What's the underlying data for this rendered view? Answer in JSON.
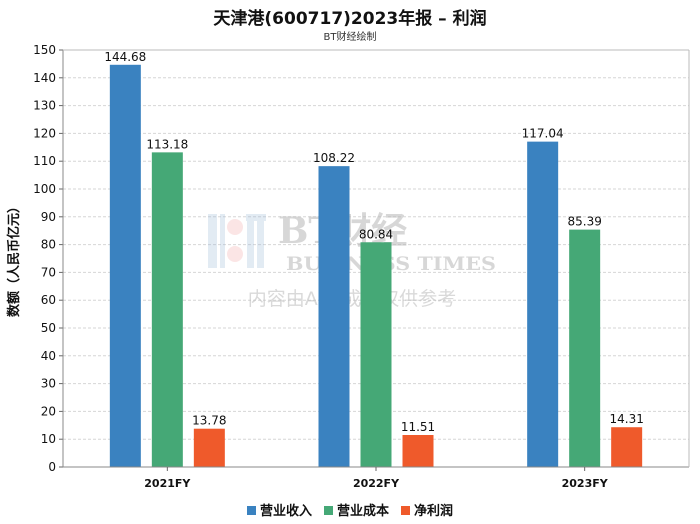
{
  "chart_data": {
    "type": "bar",
    "title": "天津港(600717)2023年报 – 利润",
    "subtitle": "BT财经绘制",
    "ylabel": "数额（人民币亿元）",
    "xlabel": "",
    "categories": [
      "2021FY",
      "2022FY",
      "2023FY"
    ],
    "ylim": [
      0,
      150
    ],
    "yticks": [
      0,
      10,
      20,
      30,
      40,
      50,
      60,
      70,
      80,
      90,
      100,
      110,
      120,
      130,
      140,
      150
    ],
    "grid": true,
    "legend_position": "bottom",
    "series": [
      {
        "name": "营业收入",
        "color": "#3a82c0",
        "values": [
          144.68,
          108.22,
          117.04
        ],
        "labels": [
          "144.68",
          "108.22",
          "117.04"
        ]
      },
      {
        "name": "营业成本",
        "color": "#45a876",
        "values": [
          113.18,
          80.84,
          85.39
        ],
        "labels": [
          "113.18",
          "80.84",
          "85.39"
        ]
      },
      {
        "name": "净利润",
        "color": "#ef5a2b",
        "values": [
          13.78,
          11.51,
          14.31
        ],
        "labels": [
          "13.78",
          "11.51",
          "14.31"
        ]
      }
    ]
  },
  "watermark": {
    "brand_cn": "BT财经",
    "brand_en": "BUSINESS TIMES",
    "notice": "内容由AI生成，仅供参考"
  }
}
